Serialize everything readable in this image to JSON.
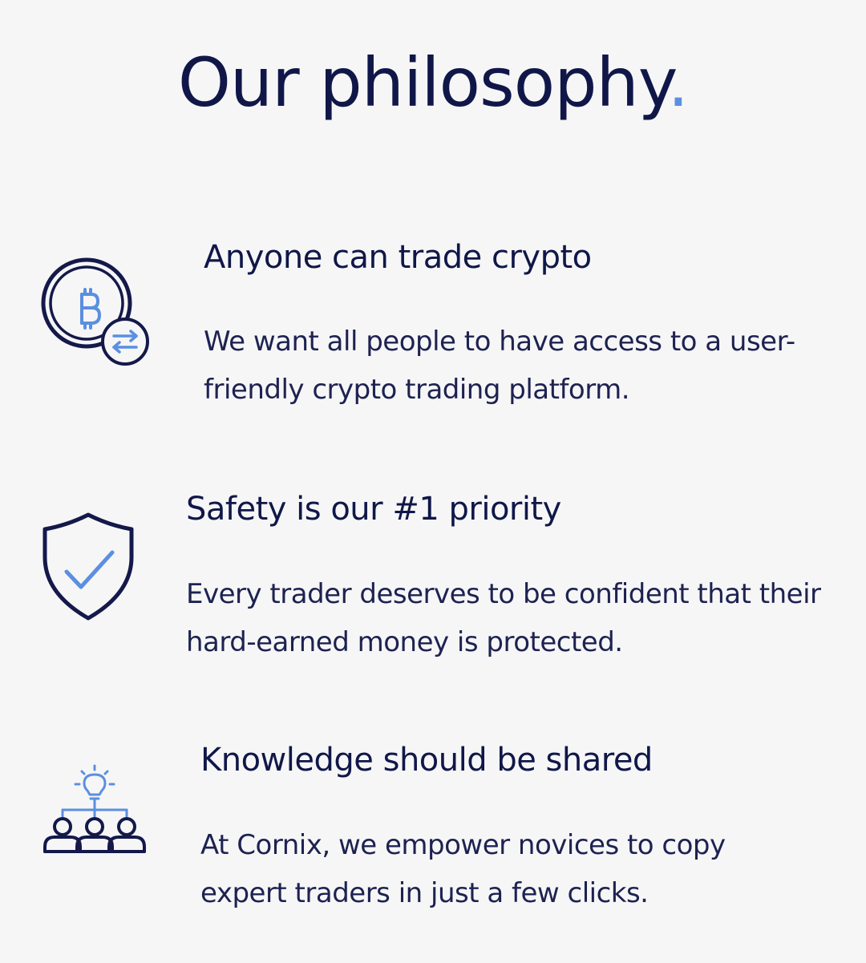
{
  "header": {
    "title": "Our philosophy",
    "title_dot": "."
  },
  "features": [
    {
      "icon": "bitcoin-exchange-icon",
      "heading": "Anyone can trade crypto",
      "body": "We want all people to have access to a user-friendly crypto trading platform."
    },
    {
      "icon": "shield-check-icon",
      "heading": "Safety is our #1 priority",
      "body": "Every trader deserves to be confident that their hard-earned money is protected."
    },
    {
      "icon": "idea-sharing-group-icon",
      "heading": "Knowledge should be shared",
      "body": "At Cornix, we empower novices to copy expert traders in just a few clicks."
    }
  ],
  "colors": {
    "navy": "#14194a",
    "accent": "#5b8fe0",
    "background": "#f6f6f7"
  }
}
